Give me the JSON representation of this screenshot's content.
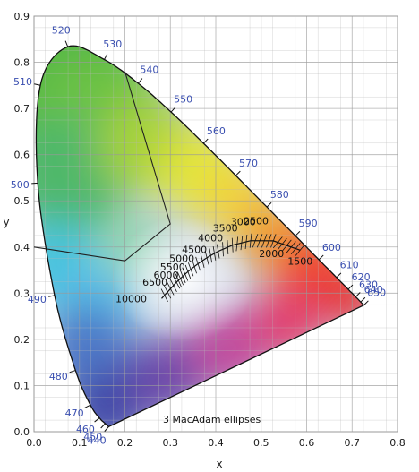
{
  "chart_data": {
    "type": "scatter",
    "title": "",
    "xlabel": "x",
    "ylabel": "y",
    "xlim": [
      0.0,
      0.8
    ],
    "ylim": [
      0.0,
      0.9
    ],
    "grid": true,
    "x_ticks": [
      "0.0",
      "0.1",
      "0.2",
      "0.3",
      "0.4",
      "0.5",
      "0.6",
      "0.7",
      "0.8"
    ],
    "y_ticks": [
      "0.0",
      "0.1",
      "0.2",
      "0.3",
      "0.4",
      "0.5",
      "0.6",
      "0.7",
      "0.8",
      "0.9"
    ],
    "wavelength_color": "#3a4fb0",
    "spectral_locus": [
      {
        "wl": 440,
        "x": 0.1644,
        "y": 0.0109,
        "label": "440"
      },
      {
        "wl": 450,
        "x": 0.1566,
        "y": 0.0177,
        "label": "450"
      },
      {
        "wl": 460,
        "x": 0.144,
        "y": 0.0297,
        "label": "460"
      },
      {
        "wl": 470,
        "x": 0.1241,
        "y": 0.0578,
        "label": "470"
      },
      {
        "wl": 480,
        "x": 0.0913,
        "y": 0.1327,
        "label": "480"
      },
      {
        "wl": 490,
        "x": 0.0454,
        "y": 0.295,
        "label": "490"
      },
      {
        "wl": 500,
        "x": 0.0082,
        "y": 0.5384,
        "label": "500"
      },
      {
        "wl": 510,
        "x": 0.0139,
        "y": 0.7502,
        "label": "510"
      },
      {
        "wl": 520,
        "x": 0.0743,
        "y": 0.8338,
        "label": "520"
      },
      {
        "wl": 530,
        "x": 0.1547,
        "y": 0.8059,
        "label": "530"
      },
      {
        "wl": 540,
        "x": 0.2296,
        "y": 0.7543,
        "label": "540"
      },
      {
        "wl": 550,
        "x": 0.3016,
        "y": 0.6923,
        "label": "550"
      },
      {
        "wl": 560,
        "x": 0.3731,
        "y": 0.6245,
        "label": "560"
      },
      {
        "wl": 570,
        "x": 0.4441,
        "y": 0.5547,
        "label": "570"
      },
      {
        "wl": 580,
        "x": 0.5125,
        "y": 0.4866,
        "label": "580"
      },
      {
        "wl": 590,
        "x": 0.5752,
        "y": 0.4242,
        "label": "590"
      },
      {
        "wl": 600,
        "x": 0.627,
        "y": 0.3725,
        "label": "600"
      },
      {
        "wl": 610,
        "x": 0.6658,
        "y": 0.334,
        "label": "610"
      },
      {
        "wl": 620,
        "x": 0.6915,
        "y": 0.3083,
        "label": "620"
      },
      {
        "wl": 630,
        "x": 0.7079,
        "y": 0.292,
        "label": "630"
      },
      {
        "wl": 640,
        "x": 0.719,
        "y": 0.2809,
        "label": "640"
      },
      {
        "wl": 650,
        "x": 0.726,
        "y": 0.274,
        "label": "650"
      }
    ],
    "planckian_locus": [
      {
        "cct": 1500,
        "x": 0.5857,
        "y": 0.3931,
        "label": "1500"
      },
      {
        "cct": 2000,
        "x": 0.5267,
        "y": 0.4133,
        "label": "2000"
      },
      {
        "cct": 2500,
        "x": 0.477,
        "y": 0.4137,
        "label": "2500"
      },
      {
        "cct": 3000,
        "x": 0.4369,
        "y": 0.4041,
        "label": "3000"
      },
      {
        "cct": 3500,
        "x": 0.4053,
        "y": 0.3907,
        "label": "3500"
      },
      {
        "cct": 4000,
        "x": 0.3805,
        "y": 0.3768,
        "label": "4000"
      },
      {
        "cct": 4500,
        "x": 0.3608,
        "y": 0.3636,
        "label": "4500"
      },
      {
        "cct": 5000,
        "x": 0.3451,
        "y": 0.3516,
        "label": "5000"
      },
      {
        "cct": 5500,
        "x": 0.3325,
        "y": 0.3411,
        "label": "5500"
      },
      {
        "cct": 6000,
        "x": 0.3221,
        "y": 0.3318,
        "label": "6000"
      },
      {
        "cct": 6500,
        "x": 0.3135,
        "y": 0.3237,
        "label": "6500"
      },
      {
        "cct": 10000,
        "x": 0.2807,
        "y": 0.2884,
        "label": "10000"
      }
    ],
    "gamut_boundary": [
      {
        "x": 0.0,
        "y": 0.4
      },
      {
        "x": 0.2,
        "y": 0.37
      },
      {
        "x": 0.3,
        "y": 0.45
      },
      {
        "x": 0.2,
        "y": 0.78
      }
    ],
    "annotation": "3  MacAdam ellipses"
  }
}
